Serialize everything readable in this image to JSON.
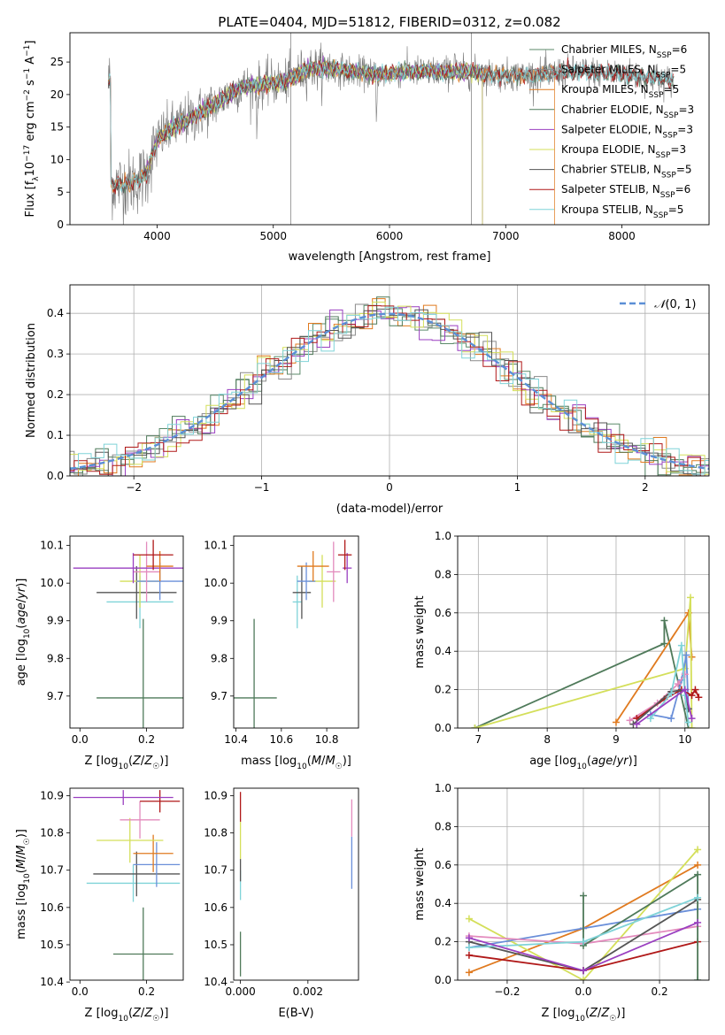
{
  "page_title": "PLATE=0404, MJD=51812, FIBERID=0312, z=0.082",
  "colors": {
    "chabrier_miles": "#5b8a6a",
    "salpeter_miles": "#8a8a8a",
    "kroupa_miles": "#e07a1f",
    "chabrier_elodie": "#4f7a5a",
    "salpeter_elodie": "#9a3fc0",
    "kroupa_elodie": "#d4df5a",
    "chabrier_stelib": "#555555",
    "salpeter_stelib": "#b01818",
    "kroupa_stelib": "#7fd3d8",
    "normal": "#5b8fd6",
    "blue": "#6a8fd9",
    "pink": "#e38bbd"
  },
  "chart_data": [
    {
      "id": "spectrum",
      "type": "line",
      "title": "PLATE=0404, MJD=51812, FIBERID=0312, z=0.082",
      "xlabel": "wavelength [Angstrom, rest frame]",
      "ylabel": "Flux [fλ10⁻¹⁷ erg cm⁻² s⁻¹ A⁻¹]",
      "xlim": [
        3250,
        8750
      ],
      "ylim": [
        0,
        29.5
      ],
      "xticks": [
        4000,
        5000,
        6000,
        7000,
        8000
      ],
      "yticks": [
        0,
        5,
        10,
        15,
        20,
        25
      ],
      "grid": false,
      "legend_position": "top-right",
      "continuum": {
        "x": [
          3600,
          3800,
          3900,
          4000,
          4100,
          4300,
          4500,
          4700,
          4900,
          5100,
          5300,
          5500,
          5700,
          5900,
          6100,
          6300,
          6500,
          6700,
          6900,
          7100,
          7300,
          7500,
          7700,
          7900,
          8100,
          8300,
          8450
        ],
        "y": [
          6,
          6.5,
          7.5,
          13,
          14.5,
          16.5,
          18.5,
          21,
          21.5,
          22,
          24,
          24,
          23.5,
          23,
          23.5,
          23.5,
          23.5,
          23.5,
          23,
          23,
          23,
          23.5,
          23.5,
          23.2,
          23,
          22.5,
          22
        ]
      },
      "series": [
        {
          "name": "Chabrier MILES, N_SSP=6",
          "color_key": "chabrier_miles"
        },
        {
          "name": "Salpeter MILES, N_SSP=5",
          "color_key": "salpeter_miles"
        },
        {
          "name": "Kroupa MILES, N_SSP=5",
          "color_key": "kroupa_miles"
        },
        {
          "name": "Chabrier ELODIE, N_SSP=3",
          "color_key": "chabrier_elodie"
        },
        {
          "name": "Salpeter ELODIE, N_SSP=3",
          "color_key": "salpeter_elodie"
        },
        {
          "name": "Kroupa ELODIE, N_SSP=3",
          "color_key": "kroupa_elodie"
        },
        {
          "name": "Chabrier STELIB, N_SSP=5",
          "color_key": "chabrier_stelib"
        },
        {
          "name": "Salpeter STELIB, N_SSP=6",
          "color_key": "salpeter_stelib"
        },
        {
          "name": "Kroupa STELIB, N_SSP=5",
          "color_key": "kroupa_stelib"
        }
      ],
      "legend_labels": [
        [
          "Chabrier MILES, N",
          "SSP",
          "=6"
        ],
        [
          "Salpeter MILES, N",
          "SSP",
          "=5"
        ],
        [
          "Kroupa MILES, N",
          "SSP",
          "=5"
        ],
        [
          "Chabrier ELODIE, N",
          "SSP",
          "=3"
        ],
        [
          "Salpeter ELODIE, N",
          "SSP",
          "=3"
        ],
        [
          "Kroupa ELODIE, N",
          "SSP",
          "=3"
        ],
        [
          "Chabrier STELIB, N",
          "SSP",
          "=5"
        ],
        [
          "Salpeter STELIB, N",
          "SSP",
          "=6"
        ],
        [
          "Kroupa STELIB, N",
          "SSP",
          "=5"
        ]
      ]
    },
    {
      "id": "residuals",
      "type": "step",
      "xlabel": "(data-model)/error",
      "ylabel": "Normed distribution",
      "xlim": [
        -2.5,
        2.5
      ],
      "ylim": [
        0,
        0.47
      ],
      "xticks": [
        -2,
        -1,
        0,
        1,
        2
      ],
      "yticks": [
        0.0,
        0.1,
        0.2,
        0.3,
        0.4
      ],
      "grid": true,
      "legend_position": "top-right",
      "normal_label": "N(0,1)",
      "bin_width": 0.1
    },
    {
      "id": "age_vs_Z",
      "type": "errorbar",
      "xlabel": "Z [log10(Z/Z☉)]",
      "ylabel": "age [log10(age/yr)]",
      "xlim": [
        -0.03,
        0.31
      ],
      "ylim": [
        9.615,
        10.125
      ],
      "xticks": [
        0.0,
        0.2
      ],
      "yticks": [
        9.7,
        9.8,
        9.9,
        10.0,
        10.1
      ],
      "points": [
        {
          "x": 0.19,
          "y": 9.695,
          "xerr": 0.14,
          "yerr": 0.21,
          "color_key": "chabrier_elodie"
        },
        {
          "x": 0.18,
          "y": 9.95,
          "xerr": 0.1,
          "yerr": 0.07,
          "color_key": "kroupa_stelib"
        },
        {
          "x": 0.17,
          "y": 9.975,
          "xerr": 0.12,
          "yerr": 0.07,
          "color_key": "chabrier_stelib"
        },
        {
          "x": 0.18,
          "y": 10.005,
          "xerr": 0.06,
          "yerr": 0.07,
          "color_key": "kroupa_elodie"
        },
        {
          "x": 0.24,
          "y": 10.005,
          "xerr": 0.07,
          "yerr": 0.05,
          "color_key": "blue"
        },
        {
          "x": 0.2,
          "y": 10.03,
          "xerr": 0.04,
          "yerr": 0.08,
          "color_key": "pink"
        },
        {
          "x": 0.16,
          "y": 10.04,
          "xerr": 0.18,
          "yerr": 0.04,
          "color_key": "salpeter_elodie"
        },
        {
          "x": 0.24,
          "y": 10.045,
          "xerr": 0.04,
          "yerr": 0.04,
          "color_key": "kroupa_miles"
        },
        {
          "x": 0.22,
          "y": 10.075,
          "xerr": 0.06,
          "yerr": 0.04,
          "color_key": "salpeter_stelib"
        }
      ]
    },
    {
      "id": "age_vs_mass",
      "type": "errorbar",
      "xlabel": "mass [log10(M/M☉)]",
      "ylabel": "",
      "xlim": [
        10.39,
        10.94
      ],
      "ylim": [
        9.615,
        10.125
      ],
      "xticks": [
        10.4,
        10.6,
        10.8
      ],
      "yticks": [
        9.7,
        9.8,
        9.9,
        10.0,
        10.1
      ],
      "points": [
        {
          "x": 10.48,
          "y": 9.695,
          "xerr": 0.1,
          "yerr": 0.21,
          "color_key": "chabrier_elodie"
        },
        {
          "x": 10.67,
          "y": 9.95,
          "xerr": 0.02,
          "yerr": 0.07,
          "color_key": "kroupa_stelib"
        },
        {
          "x": 10.69,
          "y": 9.975,
          "xerr": 0.04,
          "yerr": 0.07,
          "color_key": "chabrier_stelib"
        },
        {
          "x": 10.78,
          "y": 10.005,
          "xerr": 0.06,
          "yerr": 0.07,
          "color_key": "kroupa_elodie"
        },
        {
          "x": 10.71,
          "y": 10.005,
          "xerr": 0.04,
          "yerr": 0.05,
          "color_key": "blue"
        },
        {
          "x": 10.83,
          "y": 10.03,
          "xerr": 0.03,
          "yerr": 0.08,
          "color_key": "pink"
        },
        {
          "x": 10.89,
          "y": 10.04,
          "xerr": 0.02,
          "yerr": 0.04,
          "color_key": "salpeter_elodie"
        },
        {
          "x": 10.74,
          "y": 10.045,
          "xerr": 0.07,
          "yerr": 0.04,
          "color_key": "kroupa_miles"
        },
        {
          "x": 10.88,
          "y": 10.075,
          "xerr": 0.03,
          "yerr": 0.04,
          "color_key": "salpeter_stelib"
        }
      ]
    },
    {
      "id": "weight_vs_age",
      "type": "line",
      "xlabel": "age [log10(age/yr)]",
      "ylabel": "mass weight",
      "xlim": [
        6.7,
        10.35
      ],
      "ylim": [
        0,
        1.0
      ],
      "xticks": [
        7,
        8,
        9,
        10
      ],
      "yticks": [
        0.0,
        0.2,
        0.4,
        0.6,
        0.8,
        1.0
      ],
      "grid": true,
      "series": [
        {
          "color_key": "chabrier_elodie",
          "x": [
            6.95,
            9.7,
            9.7,
            10.05
          ],
          "y": [
            0.0,
            0.44,
            0.56,
            0.0
          ]
        },
        {
          "color_key": "kroupa_miles",
          "x": [
            9.0,
            10.05,
            10.1
          ],
          "y": [
            0.03,
            0.6,
            0.37
          ]
        },
        {
          "color_key": "kroupa_elodie",
          "x": [
            6.95,
            10.0,
            10.08,
            10.1
          ],
          "y": [
            0.0,
            0.31,
            0.68,
            0.0
          ]
        },
        {
          "color_key": "blue",
          "x": [
            9.5,
            9.8,
            9.95,
            10.02,
            10.05
          ],
          "y": [
            0.07,
            0.05,
            0.25,
            0.38,
            0.1
          ]
        },
        {
          "color_key": "pink",
          "x": [
            9.2,
            9.6,
            9.9,
            10.0
          ],
          "y": [
            0.04,
            0.13,
            0.23,
            0.28
          ]
        },
        {
          "color_key": "salpeter_stelib",
          "x": [
            9.3,
            9.7,
            9.95,
            10.1,
            10.15,
            10.2
          ],
          "y": [
            0.05,
            0.15,
            0.2,
            0.17,
            0.2,
            0.16
          ]
        },
        {
          "color_key": "chabrier_stelib",
          "x": [
            9.25,
            9.8,
            10.0,
            10.05
          ],
          "y": [
            0.02,
            0.19,
            0.2,
            0.1
          ]
        },
        {
          "color_key": "kroupa_stelib",
          "x": [
            9.5,
            9.8,
            9.95,
            10.0,
            10.05
          ],
          "y": [
            0.05,
            0.18,
            0.43,
            0.17,
            0.03
          ]
        },
        {
          "color_key": "salpeter_elodie",
          "x": [
            9.3,
            10.0,
            10.1
          ],
          "y": [
            0.02,
            0.2,
            0.05
          ]
        }
      ]
    },
    {
      "id": "mass_vs_Z",
      "type": "errorbar",
      "xlabel": "Z [log10(Z/Z☉)]",
      "ylabel": "mass [log10(M/M☉)]",
      "xlim": [
        -0.03,
        0.31
      ],
      "ylim": [
        10.405,
        10.92
      ],
      "xticks": [
        0.0,
        0.2
      ],
      "yticks": [
        10.4,
        10.5,
        10.6,
        10.7,
        10.8,
        10.9
      ],
      "points": [
        {
          "x": 0.19,
          "y": 10.475,
          "xerr": 0.09,
          "yerr": 0.125,
          "color_key": "chabrier_elodie"
        },
        {
          "x": 0.16,
          "y": 10.665,
          "xerr": 0.14,
          "yerr": 0.05,
          "color_key": "kroupa_stelib"
        },
        {
          "x": 0.17,
          "y": 10.69,
          "xerr": 0.13,
          "yerr": 0.06,
          "color_key": "chabrier_stelib"
        },
        {
          "x": 0.23,
          "y": 10.715,
          "xerr": 0.07,
          "yerr": 0.06,
          "color_key": "blue"
        },
        {
          "x": 0.22,
          "y": 10.745,
          "xerr": 0.06,
          "yerr": 0.05,
          "color_key": "kroupa_miles"
        },
        {
          "x": 0.15,
          "y": 10.78,
          "xerr": 0.1,
          "yerr": 0.06,
          "color_key": "kroupa_elodie"
        },
        {
          "x": 0.18,
          "y": 10.835,
          "xerr": 0.06,
          "yerr": 0.05,
          "color_key": "pink"
        },
        {
          "x": 0.24,
          "y": 10.885,
          "xerr": 0.06,
          "yerr": 0.03,
          "color_key": "salpeter_stelib"
        },
        {
          "x": 0.13,
          "y": 10.895,
          "xerr": 0.15,
          "yerr": 0.02,
          "color_key": "salpeter_elodie"
        }
      ]
    },
    {
      "id": "mass_vs_ebv",
      "type": "errorbar",
      "xlabel": "E(B-V)",
      "ylabel": "",
      "xlim": [
        -0.0002,
        0.0035
      ],
      "ylim": [
        10.405,
        10.92
      ],
      "xticks": [
        0.0,
        0.002
      ],
      "yticks": [
        10.4,
        10.5,
        10.6,
        10.7,
        10.8,
        10.9
      ],
      "points": [
        {
          "x": 0.0,
          "y": 10.475,
          "xerr": 0.0,
          "yerr": 0.06,
          "color_key": "chabrier_elodie"
        },
        {
          "x": 0.0,
          "y": 10.66,
          "xerr": 0.0,
          "yerr": 0.04,
          "color_key": "kroupa_stelib"
        },
        {
          "x": 0.0,
          "y": 10.7,
          "xerr": 0.0,
          "yerr": 0.03,
          "color_key": "chabrier_stelib"
        },
        {
          "x": 0.0,
          "y": 10.78,
          "xerr": 0.0,
          "yerr": 0.05,
          "color_key": "kroupa_elodie"
        },
        {
          "x": 0.0,
          "y": 10.87,
          "xerr": 0.0,
          "yerr": 0.04,
          "color_key": "salpeter_stelib"
        },
        {
          "x": 0.0033,
          "y": 10.72,
          "xerr": 0.0,
          "yerr": 0.07,
          "color_key": "blue"
        },
        {
          "x": 0.0033,
          "y": 10.84,
          "xerr": 0.0,
          "yerr": 0.05,
          "color_key": "pink"
        }
      ]
    },
    {
      "id": "weight_vs_Z",
      "type": "line",
      "xlabel": "Z [log10(Z/Z☉)]",
      "ylabel": "mass weight",
      "xlim": [
        -0.33,
        0.33
      ],
      "ylim": [
        0,
        1.0
      ],
      "xticks": [
        -0.2,
        0.0,
        0.2
      ],
      "yticks": [
        0.0,
        0.2,
        0.4,
        0.6,
        0.8,
        1.0
      ],
      "grid": true,
      "series": [
        {
          "color_key": "kroupa_miles",
          "x": [
            -0.3,
            0.0,
            0.3
          ],
          "y": [
            0.04,
            0.27,
            0.6
          ]
        },
        {
          "color_key": "kroupa_elodie",
          "x": [
            -0.3,
            0.0,
            0.3
          ],
          "y": [
            0.32,
            0.0,
            0.68
          ]
        },
        {
          "color_key": "blue",
          "x": [
            -0.3,
            0.0,
            0.3
          ],
          "y": [
            0.17,
            0.27,
            0.37
          ]
        },
        {
          "color_key": "pink",
          "x": [
            -0.3,
            0.0,
            0.3
          ],
          "y": [
            0.23,
            0.19,
            0.28
          ]
        },
        {
          "color_key": "salpeter_stelib",
          "x": [
            -0.3,
            0.0,
            0.3
          ],
          "y": [
            0.13,
            0.05,
            0.2
          ]
        },
        {
          "color_key": "chabrier_stelib",
          "x": [
            -0.3,
            0.0,
            0.3
          ],
          "y": [
            0.2,
            0.05,
            0.42
          ]
        },
        {
          "color_key": "chabrier_elodie",
          "x": [
            0.0,
            0.0,
            0.3,
            0.3
          ],
          "y": [
            0.44,
            0.18,
            0.55,
            0.0
          ]
        },
        {
          "color_key": "kroupa_stelib",
          "x": [
            -0.3,
            0.0,
            0.3
          ],
          "y": [
            0.17,
            0.2,
            0.43
          ]
        },
        {
          "color_key": "salpeter_elodie",
          "x": [
            -0.3,
            0.0,
            0.3
          ],
          "y": [
            0.22,
            0.05,
            0.3
          ]
        }
      ]
    }
  ]
}
